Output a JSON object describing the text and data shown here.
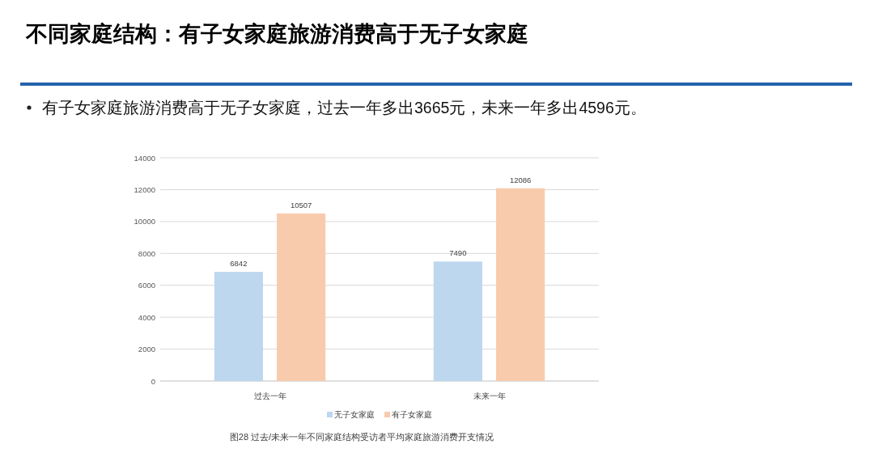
{
  "chart_data": {
    "type": "bar",
    "title": "不同家庭结构：有子女家庭旅游消费高于无子女家庭",
    "subtitle": "有子女家庭旅游消费高于无子女家庭，过去一年多出3665元，未来一年多出4596元。",
    "annotations": [
      "图28 过去/未来一年不同家庭结构受访者平均家庭旅游消费开支情况"
    ],
    "categories": [
      "过去一年",
      "未来一年"
    ],
    "series": [
      {
        "name": "无子女家庭",
        "color": "#bdd7ee",
        "values": [
          6842,
          7490
        ]
      },
      {
        "name": "有子女家庭",
        "color": "#f8cbad",
        "values": [
          10507,
          12086
        ]
      }
    ],
    "ylim": [
      0,
      14000
    ],
    "yticks": [
      0,
      2000,
      4000,
      6000,
      8000,
      10000,
      12000,
      14000
    ],
    "grid": "y",
    "legend": "bottom",
    "data_labels": true
  }
}
